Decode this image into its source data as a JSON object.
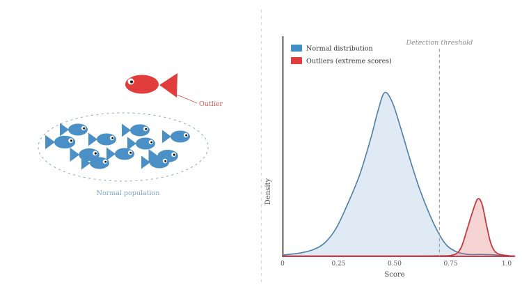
{
  "illustration": {
    "outlier_label": "Outlier",
    "population_label": "Normal population",
    "fish_color_normal": "#4a8fc5",
    "fish_color_outlier": "#e23d3d",
    "ellipse_color": "#8da6b5",
    "label_color_population": "#7ba7c6",
    "label_color_outlier": "#d85252"
  },
  "chart": {
    "legend": [
      {
        "label": "Normal distribution",
        "color": "#3f8ec5"
      },
      {
        "label": "Outliers (extreme scores)",
        "color": "#e23d3d"
      }
    ],
    "threshold_label": "Detection threshold",
    "xlabel": "Score",
    "ylabel": "Density",
    "x_tick_labels": [
      "0",
      "0.25",
      "0.50",
      "0.75",
      "1.0"
    ]
  },
  "chart_data": {
    "type": "area",
    "title": "",
    "xlabel": "Score",
    "ylabel": "Density",
    "xlim": [
      0,
      1.0
    ],
    "x_ticks": [
      0,
      0.25,
      0.5,
      0.75,
      1.0
    ],
    "grid": false,
    "legend_position": "upper-left",
    "threshold": {
      "label": "Detection threshold",
      "x": 0.7
    },
    "series": [
      {
        "name": "Normal distribution",
        "peak_x": 0.455,
        "peak_density": 1.0,
        "stroke": "#4c7da7",
        "fill": "#dfeaf5",
        "x": [
          0,
          0.08,
          0.14,
          0.19,
          0.24,
          0.29,
          0.345,
          0.395,
          0.425,
          0.455,
          0.49,
          0.53,
          0.57,
          0.61,
          0.655,
          0.7,
          0.735,
          0.78,
          0.83,
          0.88,
          0.93,
          0.98,
          1.03
        ],
        "y": [
          0.008,
          0.021,
          0.043,
          0.085,
          0.174,
          0.319,
          0.502,
          0.728,
          0.885,
          1.0,
          0.94,
          0.77,
          0.587,
          0.417,
          0.26,
          0.132,
          0.064,
          0.026,
          0.012,
          0.012,
          0.01,
          0.005,
          0.002
        ]
      },
      {
        "name": "Outliers (extreme scores)",
        "peak_x": 0.87,
        "peak_density": 0.35,
        "stroke": "#c23a41",
        "fill": "rgba(225,82,82,0.25)",
        "x": [
          0,
          0.35,
          0.6,
          0.7,
          0.75,
          0.78,
          0.8,
          0.82,
          0.845,
          0.87,
          0.89,
          0.91,
          0.93,
          0.955,
          1.0,
          1.035
        ],
        "y": [
          0.002,
          0.002,
          0.002,
          0.003,
          0.005,
          0.021,
          0.064,
          0.149,
          0.26,
          0.35,
          0.319,
          0.191,
          0.077,
          0.021,
          0.005,
          0.002
        ]
      }
    ]
  }
}
